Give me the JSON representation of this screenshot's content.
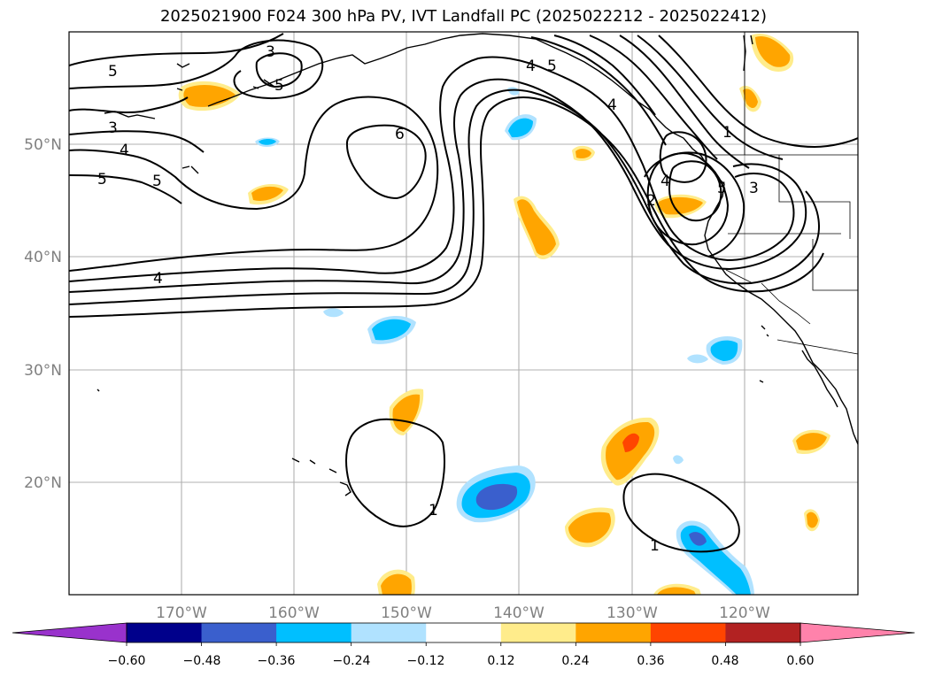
{
  "title": "2025021900 F024 300 hPa PV, IVT Landfall PC (2025022212 - 2025022412)",
  "map": {
    "lon_labels": [
      "170°W",
      "160°W",
      "150°W",
      "140°W",
      "130°W",
      "120°W"
    ],
    "lat_labels": [
      "50°N",
      "40°N",
      "30°N",
      "20°N"
    ],
    "contour_labels": [
      "5",
      "3",
      "4",
      "5",
      "5",
      "3",
      "6",
      "4",
      "5",
      "4",
      "1",
      "4",
      "5",
      "3",
      "2",
      "1",
      "1",
      "4",
      "5"
    ]
  },
  "colorbar": {
    "colors": [
      "#9932cc",
      "#00008b",
      "#3a5fcd",
      "#00bfff",
      "#b0e2ff",
      "#ffffff",
      "#ffec8b",
      "#ffa500",
      "#ff4500",
      "#b22222",
      "#ff82ab"
    ],
    "tick_labels": [
      "−0.60",
      "−0.48",
      "−0.36",
      "−0.24",
      "−0.12",
      "0.12",
      "0.24",
      "0.36",
      "0.48",
      "0.60"
    ]
  }
}
